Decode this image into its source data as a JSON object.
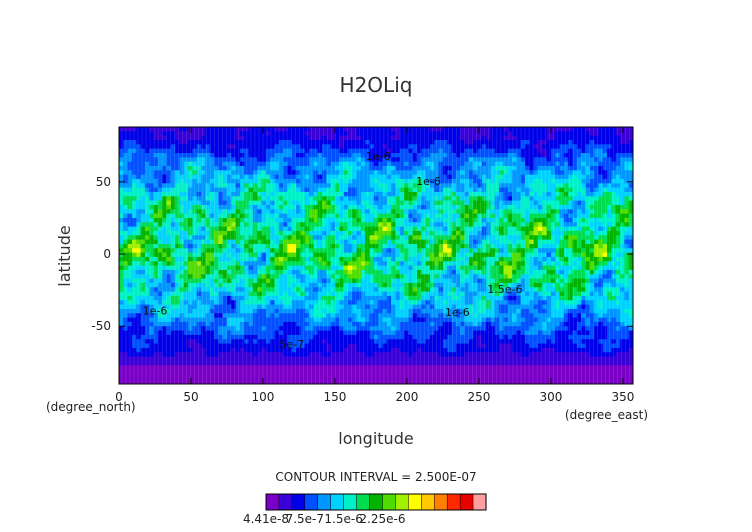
{
  "chart_data": {
    "type": "heatmap",
    "title": "H2OLiq",
    "xlabel": "longitude",
    "ylabel": "latitude",
    "x_unit": "(degree_east)",
    "y_unit": "(degree_north)",
    "xlim": [
      0,
      357
    ],
    "ylim": [
      -90,
      88
    ],
    "x_ticks": [
      0,
      50,
      100,
      150,
      200,
      250,
      300,
      350
    ],
    "y_ticks": [
      -50,
      0,
      50
    ],
    "contour_interval_text": "CONTOUR INTERVAL = 2.500E-07",
    "contour_labels": [
      {
        "text": "1e-6",
        "lon": 180,
        "lat": 65
      },
      {
        "text": "1e-6",
        "lon": 215,
        "lat": 48
      },
      {
        "text": "1e-6",
        "lon": 25,
        "lat": -42
      },
      {
        "text": "1e-6",
        "lon": 235,
        "lat": -43
      },
      {
        "text": "1.5e-6",
        "lon": 268,
        "lat": -27
      },
      {
        "text": "5e-7",
        "lon": 120,
        "lat": -65
      }
    ],
    "latitude_profile": [
      {
        "lat": 88,
        "value": 3e-07
      },
      {
        "lat": 80,
        "value": 3.5e-07
      },
      {
        "lat": 72,
        "value": 5.5e-07
      },
      {
        "lat": 62,
        "value": 8.5e-07
      },
      {
        "lat": 52,
        "value": 1.05e-06
      },
      {
        "lat": 40,
        "value": 1.3e-06
      },
      {
        "lat": 28,
        "value": 1.45e-06
      },
      {
        "lat": 15,
        "value": 1.55e-06
      },
      {
        "lat": 5,
        "value": 1.62e-06
      },
      {
        "lat": -5,
        "value": 1.6e-06
      },
      {
        "lat": -15,
        "value": 1.5e-06
      },
      {
        "lat": -25,
        "value": 1.3e-06
      },
      {
        "lat": -35,
        "value": 1.05e-06
      },
      {
        "lat": -45,
        "value": 8.5e-07
      },
      {
        "lat": -55,
        "value": 6e-07
      },
      {
        "lat": -65,
        "value": 4e-07
      },
      {
        "lat": -72,
        "value": 2e-07
      },
      {
        "lat": -78,
        "value": 4e-08
      },
      {
        "lat": -90,
        "value": 4e-08
      }
    ],
    "colorbar": {
      "min": 4.41e-08,
      "interval": 2.5e-07,
      "colors": [
        "#7a00c8",
        "#3a00d8",
        "#0000e8",
        "#0050ff",
        "#0096ff",
        "#00d2ff",
        "#00f0c8",
        "#00dc50",
        "#00b400",
        "#50dc00",
        "#a0f000",
        "#ffff00",
        "#ffc800",
        "#ff8000",
        "#ff2a00",
        "#e60000",
        "#ff9f9f"
      ],
      "labels": [
        "4.41e-8",
        "7.5e-7",
        "1.5e-6",
        "2.25e-6"
      ]
    }
  }
}
